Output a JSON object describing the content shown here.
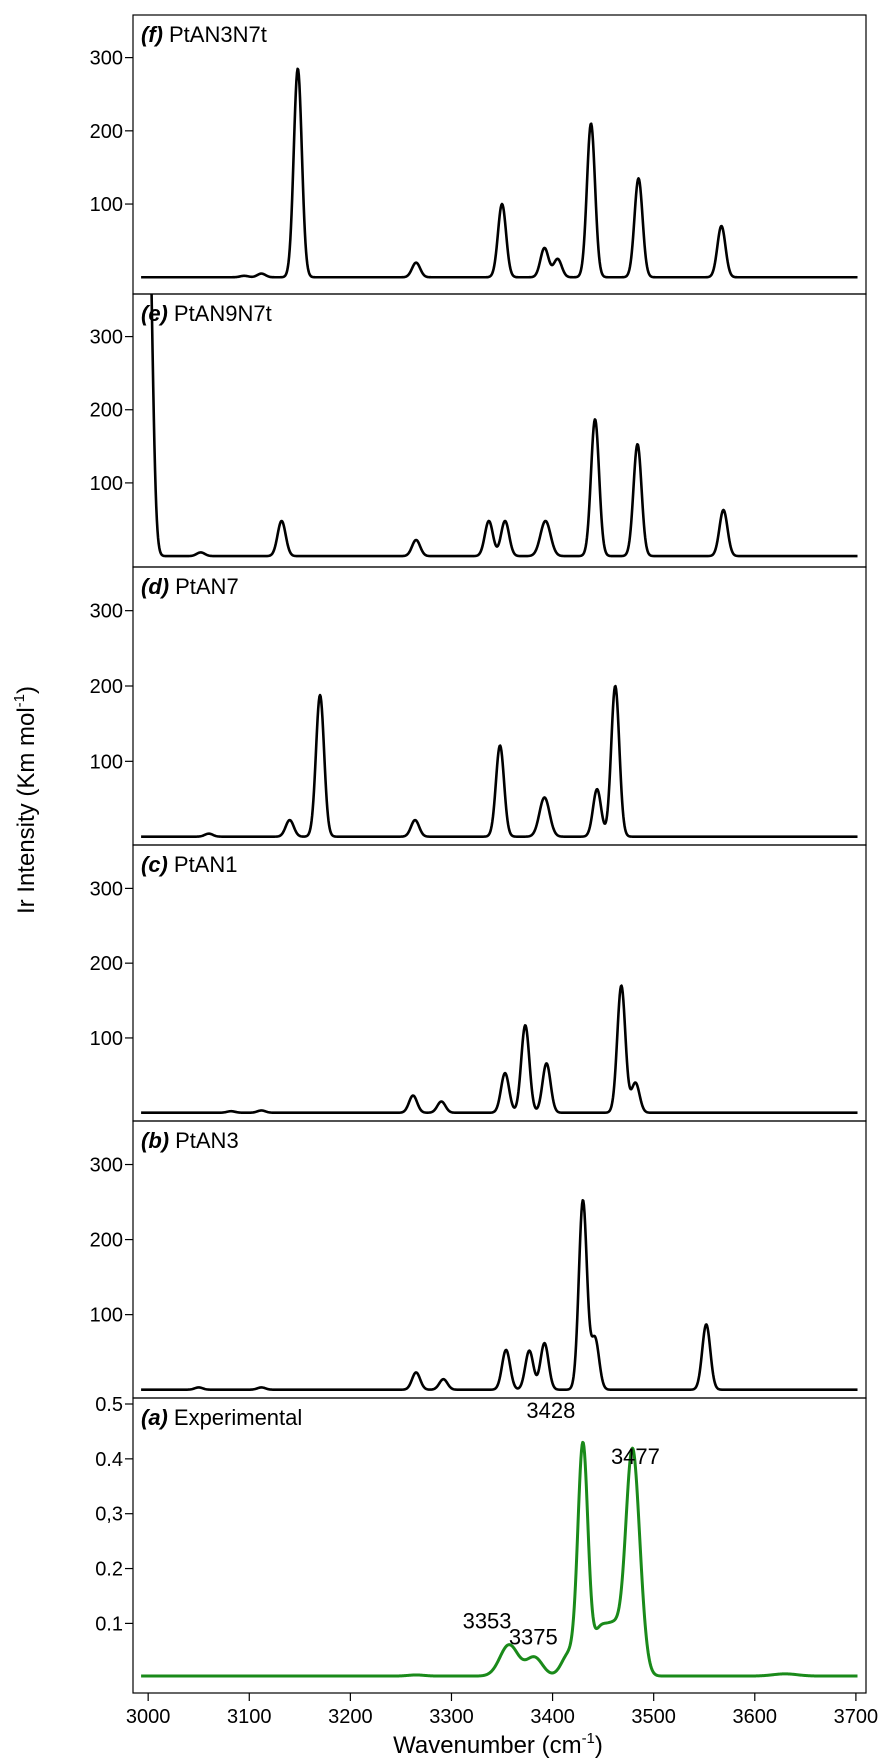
{
  "figure": {
    "ylabel_main": "Ir Intensity (Km mol",
    "ylabel_sup": "-1",
    "ylabel_end": ")",
    "xlabel_main": "Wavenumber (cm",
    "xlabel_sup": "-1",
    "xlabel_end": ")"
  },
  "chart_data": [
    {
      "type": "line",
      "panel_letter": "(f)",
      "title": "PtAN3N7t",
      "xlim": [
        2985,
        3710
      ],
      "ylim": [
        0,
        350
      ],
      "yticks": [
        100,
        200,
        300
      ],
      "ytick_labels": [
        "100",
        "200",
        "300"
      ],
      "color": "#000000",
      "peaks": [
        [
          3095,
          2,
          4
        ],
        [
          3112,
          5,
          4
        ],
        [
          3148,
          285,
          4
        ],
        [
          3265,
          20,
          4
        ],
        [
          3350,
          100,
          4
        ],
        [
          3392,
          40,
          4
        ],
        [
          3405,
          25,
          4
        ],
        [
          3438,
          210,
          4
        ],
        [
          3485,
          135,
          4
        ],
        [
          3567,
          70,
          4
        ]
      ]
    },
    {
      "type": "line",
      "panel_letter": "(e)",
      "title": "PtAN9N7t",
      "xlim": [
        2985,
        3710
      ],
      "ylim": [
        0,
        350
      ],
      "yticks": [
        100,
        200,
        300
      ],
      "ytick_labels": [
        "100",
        "200",
        "300"
      ],
      "color": "#000000",
      "peaks": [
        [
          2992,
          500,
          4
        ],
        [
          3000,
          500,
          4
        ],
        [
          3052,
          5,
          4
        ],
        [
          3132,
          48,
          4
        ],
        [
          3265,
          22,
          4
        ],
        [
          3337,
          48,
          4
        ],
        [
          3353,
          48,
          4
        ],
        [
          3393,
          48,
          5
        ],
        [
          3442,
          187,
          4
        ],
        [
          3484,
          153,
          4
        ],
        [
          3569,
          63,
          4
        ]
      ]
    },
    {
      "type": "line",
      "panel_letter": "(d)",
      "title": "PtAN7",
      "xlim": [
        2985,
        3710
      ],
      "ylim": [
        0,
        350
      ],
      "yticks": [
        100,
        200,
        300
      ],
      "ytick_labels": [
        "100",
        "200",
        "300"
      ],
      "color": "#000000",
      "peaks": [
        [
          3060,
          4,
          4
        ],
        [
          3140,
          22,
          4
        ],
        [
          3170,
          188,
          4
        ],
        [
          3264,
          22,
          4
        ],
        [
          3348,
          121,
          4
        ],
        [
          3392,
          52,
          5
        ],
        [
          3444,
          63,
          4
        ],
        [
          3462,
          200,
          4
        ]
      ]
    },
    {
      "type": "line",
      "panel_letter": "(c)",
      "title": "PtAN1",
      "xlim": [
        2985,
        3710
      ],
      "ylim": [
        0,
        350
      ],
      "yticks": [
        100,
        200,
        300
      ],
      "ytick_labels": [
        "100",
        "200",
        "300"
      ],
      "color": "#000000",
      "peaks": [
        [
          3082,
          2,
          4
        ],
        [
          3112,
          3,
          4
        ],
        [
          3262,
          23,
          4
        ],
        [
          3290,
          15,
          4
        ],
        [
          3353,
          53,
          4
        ],
        [
          3373,
          117,
          4
        ],
        [
          3394,
          66,
          4
        ],
        [
          3468,
          170,
          4
        ],
        [
          3482,
          40,
          4
        ]
      ]
    },
    {
      "type": "line",
      "panel_letter": "(b)",
      "title": "PtAN3",
      "xlim": [
        2985,
        3710
      ],
      "ylim": [
        0,
        350
      ],
      "yticks": [
        100,
        200,
        300
      ],
      "ytick_labels": [
        "100",
        "200",
        "300"
      ],
      "color": "#000000",
      "peaks": [
        [
          3050,
          3,
          4
        ],
        [
          3112,
          3,
          4
        ],
        [
          3265,
          23,
          4
        ],
        [
          3292,
          14,
          4
        ],
        [
          3354,
          53,
          4
        ],
        [
          3377,
          52,
          4
        ],
        [
          3392,
          62,
          4
        ],
        [
          3430,
          252,
          4
        ],
        [
          3442,
          68,
          4
        ],
        [
          3552,
          87,
          4
        ]
      ]
    },
    {
      "type": "line",
      "panel_letter": "(a)",
      "title": "Experimental",
      "xlim": [
        2985,
        3710
      ],
      "ylim": [
        0,
        0.5
      ],
      "yticks": [
        0.1,
        0.2,
        0.3,
        0.4,
        0.5
      ],
      "ytick_labels": [
        "0.1",
        "0.2",
        "0,3",
        "0.4",
        "0.5"
      ],
      "xticks": [
        3000,
        3100,
        3200,
        3300,
        3400,
        3500,
        3600,
        3700
      ],
      "color": "#1a8a1a",
      "baseline": 0.004,
      "peaks": [
        [
          3265,
          0.002,
          8
        ],
        [
          3357,
          0.057,
          9
        ],
        [
          3382,
          0.034,
          8
        ],
        [
          3416,
          0.04,
          7
        ],
        [
          3430,
          0.415,
          5
        ],
        [
          3445,
          0.04,
          6
        ],
        [
          3460,
          0.095,
          12
        ],
        [
          3478,
          0.32,
          6
        ],
        [
          3485,
          0.12,
          6
        ],
        [
          3630,
          0.004,
          12
        ]
      ],
      "annotations": [
        {
          "text": "3353",
          "x": 3353,
          "y": 0.065
        },
        {
          "text": "3375",
          "x": 3375,
          "y": 0.04
        },
        {
          "text": "3428",
          "x": 3428,
          "y": 0.46
        },
        {
          "text": "3477",
          "x": 3477,
          "y": 0.365
        }
      ]
    }
  ]
}
